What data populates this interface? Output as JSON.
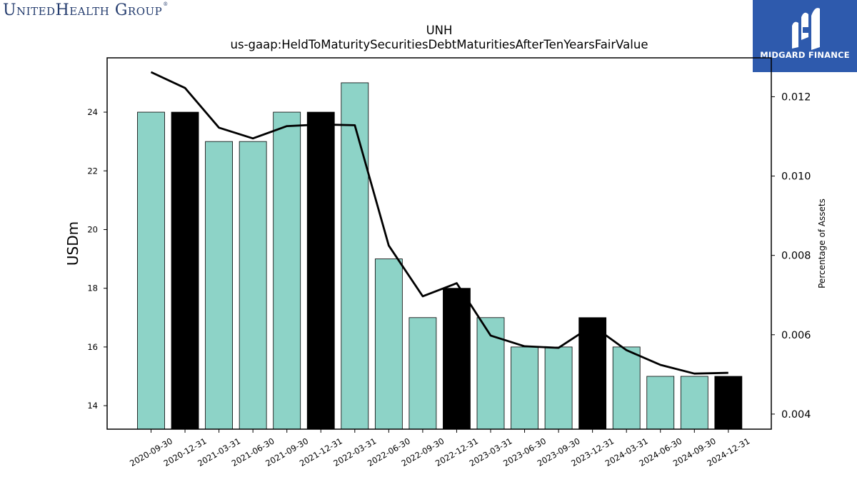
{
  "logos": {
    "left_brand": "UnitedHealth Group",
    "left_trademark": "®",
    "right_brand": "MIDGARD FINANCE"
  },
  "colors": {
    "bar_regular": "#8dd3c7",
    "bar_highlight": "#000000",
    "line": "#000000",
    "left_logo_text": "#243c6e",
    "right_logo_bg": "#2e5aad"
  },
  "chart_data": {
    "type": "bar",
    "title": "UNH",
    "subtitle": "us-gaap:HeldToMaturitySecuritiesDebtMaturitiesAfterTenYearsFairValue",
    "xlabel": "",
    "ylabel": "USDm",
    "y2label": "Percentage of Assets",
    "categories": [
      "2020-09-30",
      "2020-12-31",
      "2021-03-31",
      "2021-06-30",
      "2021-09-30",
      "2021-12-31",
      "2022-03-31",
      "2022-06-30",
      "2022-09-30",
      "2022-12-31",
      "2023-03-31",
      "2023-06-30",
      "2023-09-30",
      "2023-12-31",
      "2024-03-31",
      "2024-06-30",
      "2024-09-30",
      "2024-12-31"
    ],
    "series": [
      {
        "type": "bar",
        "axis": "left",
        "values": [
          24,
          24,
          23,
          23,
          24,
          24,
          25,
          19,
          17,
          18,
          17,
          16,
          16,
          17,
          16,
          15,
          15,
          15
        ],
        "highlight": [
          false,
          true,
          false,
          false,
          false,
          true,
          false,
          false,
          false,
          true,
          false,
          false,
          false,
          true,
          false,
          false,
          false,
          true
        ]
      },
      {
        "type": "line",
        "axis": "right",
        "values": [
          0.01262,
          0.01222,
          0.01122,
          0.01095,
          0.01126,
          0.0113,
          0.01128,
          0.00825,
          0.00697,
          0.0073,
          0.00598,
          0.00571,
          0.00567,
          0.00623,
          0.00561,
          0.00524,
          0.00502,
          0.00504
        ]
      }
    ],
    "ylim": [
      13.2,
      25.85
    ],
    "y_ticks": [
      14,
      16,
      18,
      20,
      22,
      24
    ],
    "y2lim": [
      0.00362,
      0.01298
    ],
    "y2_ticks": [
      0.004,
      0.006,
      0.008,
      0.01,
      0.012
    ],
    "y2_tick_labels": [
      "0.004",
      "0.006",
      "0.008",
      "0.010",
      "0.012"
    ],
    "grid": false,
    "legend": "none"
  }
}
